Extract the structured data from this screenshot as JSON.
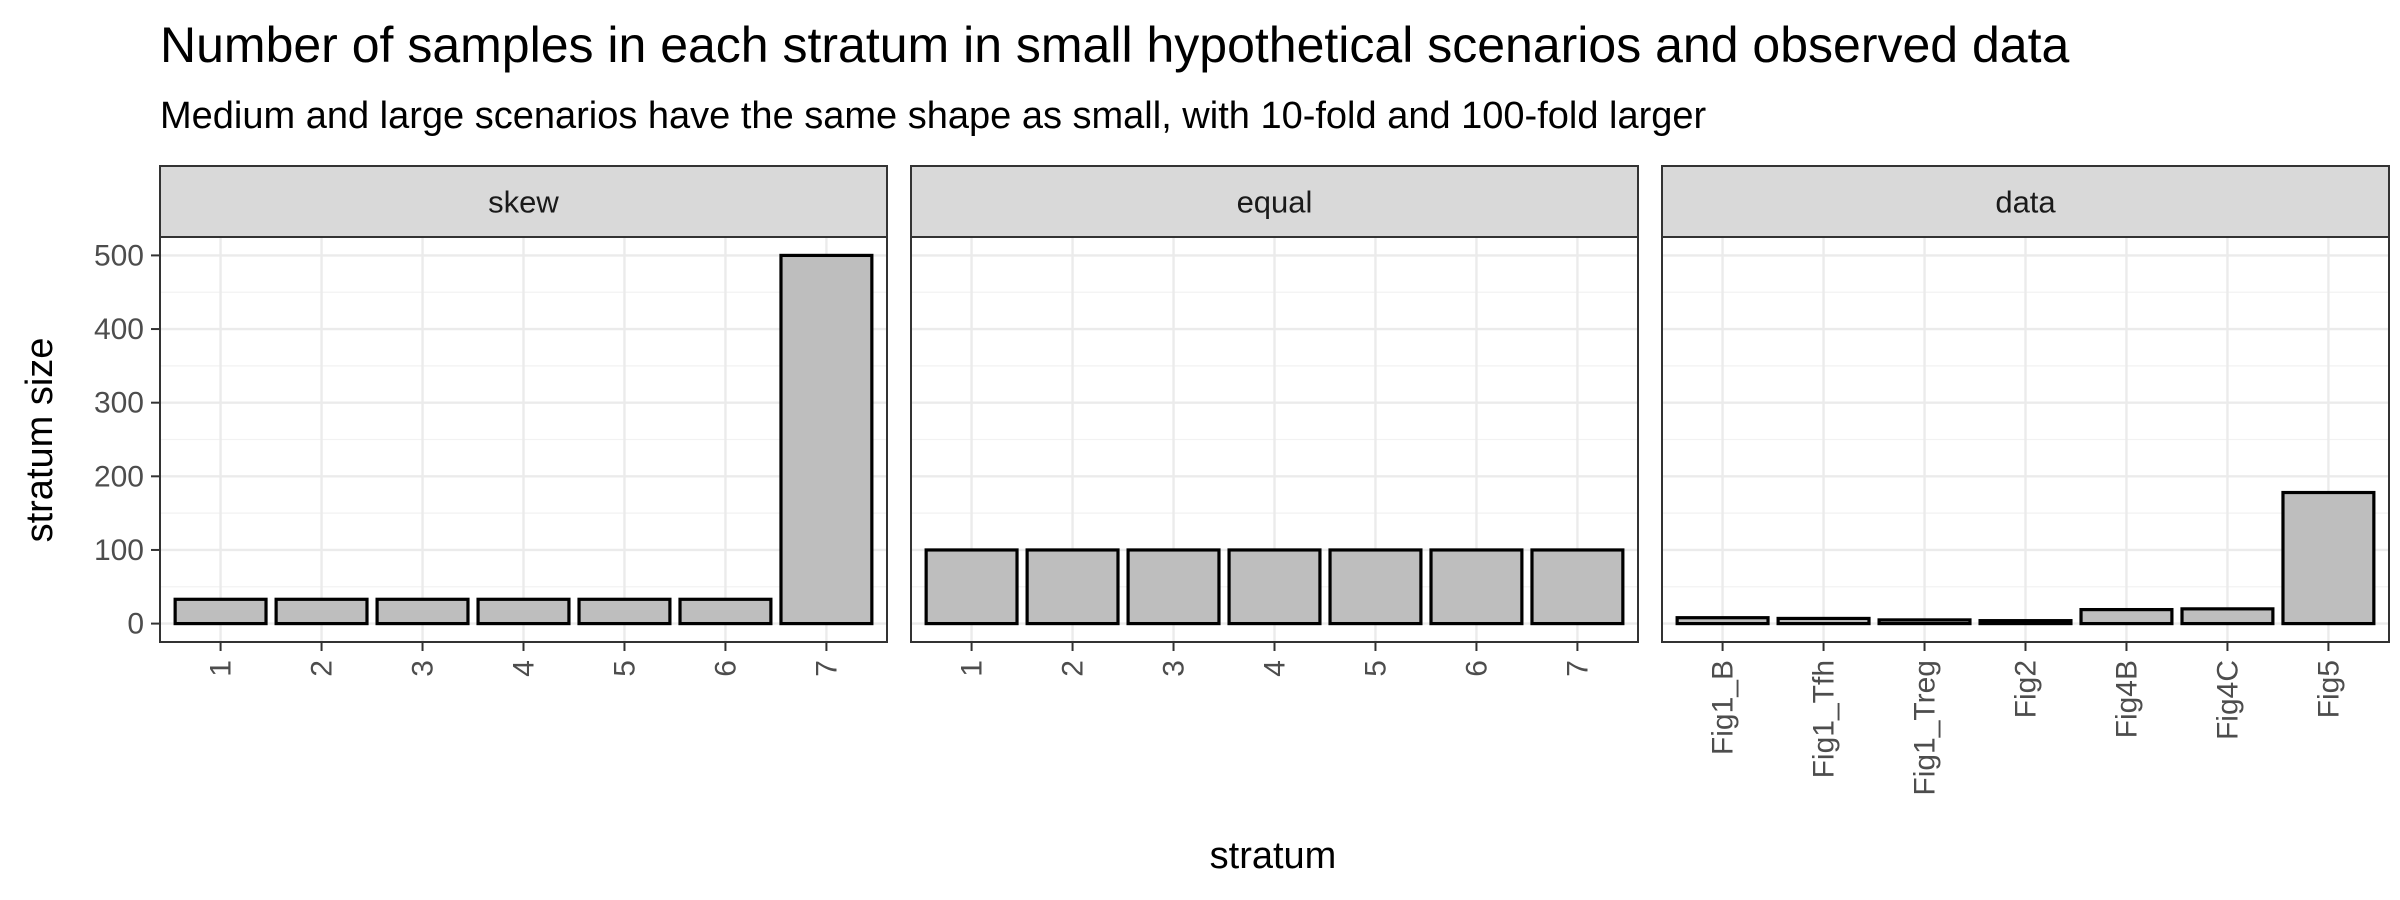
{
  "chart_data": {
    "type": "bar",
    "title": "Number of samples in each stratum in small hypothetical scenarios and observed data",
    "subtitle": "Medium and large scenarios have the same shape as small, with 10-fold and 100-fold larger",
    "xlabel": "stratum",
    "ylabel": "stratum size",
    "ylim": [
      -25,
      525
    ],
    "yticks": [
      0,
      100,
      200,
      300,
      400,
      500
    ],
    "grid": true,
    "bar_fill": "#bebebe",
    "bar_stroke": "#000000",
    "strip_fill": "#d9d9d9",
    "panels": [
      {
        "name": "skew",
        "categories": [
          "1",
          "2",
          "3",
          "4",
          "5",
          "6",
          "7"
        ],
        "values": [
          33,
          33,
          33,
          33,
          33,
          33,
          500
        ]
      },
      {
        "name": "equal",
        "categories": [
          "1",
          "2",
          "3",
          "4",
          "5",
          "6",
          "7"
        ],
        "values": [
          100,
          100,
          100,
          100,
          100,
          100,
          100
        ]
      },
      {
        "name": "data",
        "categories": [
          "Fig1_B",
          "Fig1_Tfh",
          "Fig1_Treg",
          "Fig2",
          "Fig4B",
          "Fig4C",
          "Fig5"
        ],
        "values": [
          8,
          7,
          5,
          4,
          19,
          20,
          178
        ]
      }
    ]
  }
}
